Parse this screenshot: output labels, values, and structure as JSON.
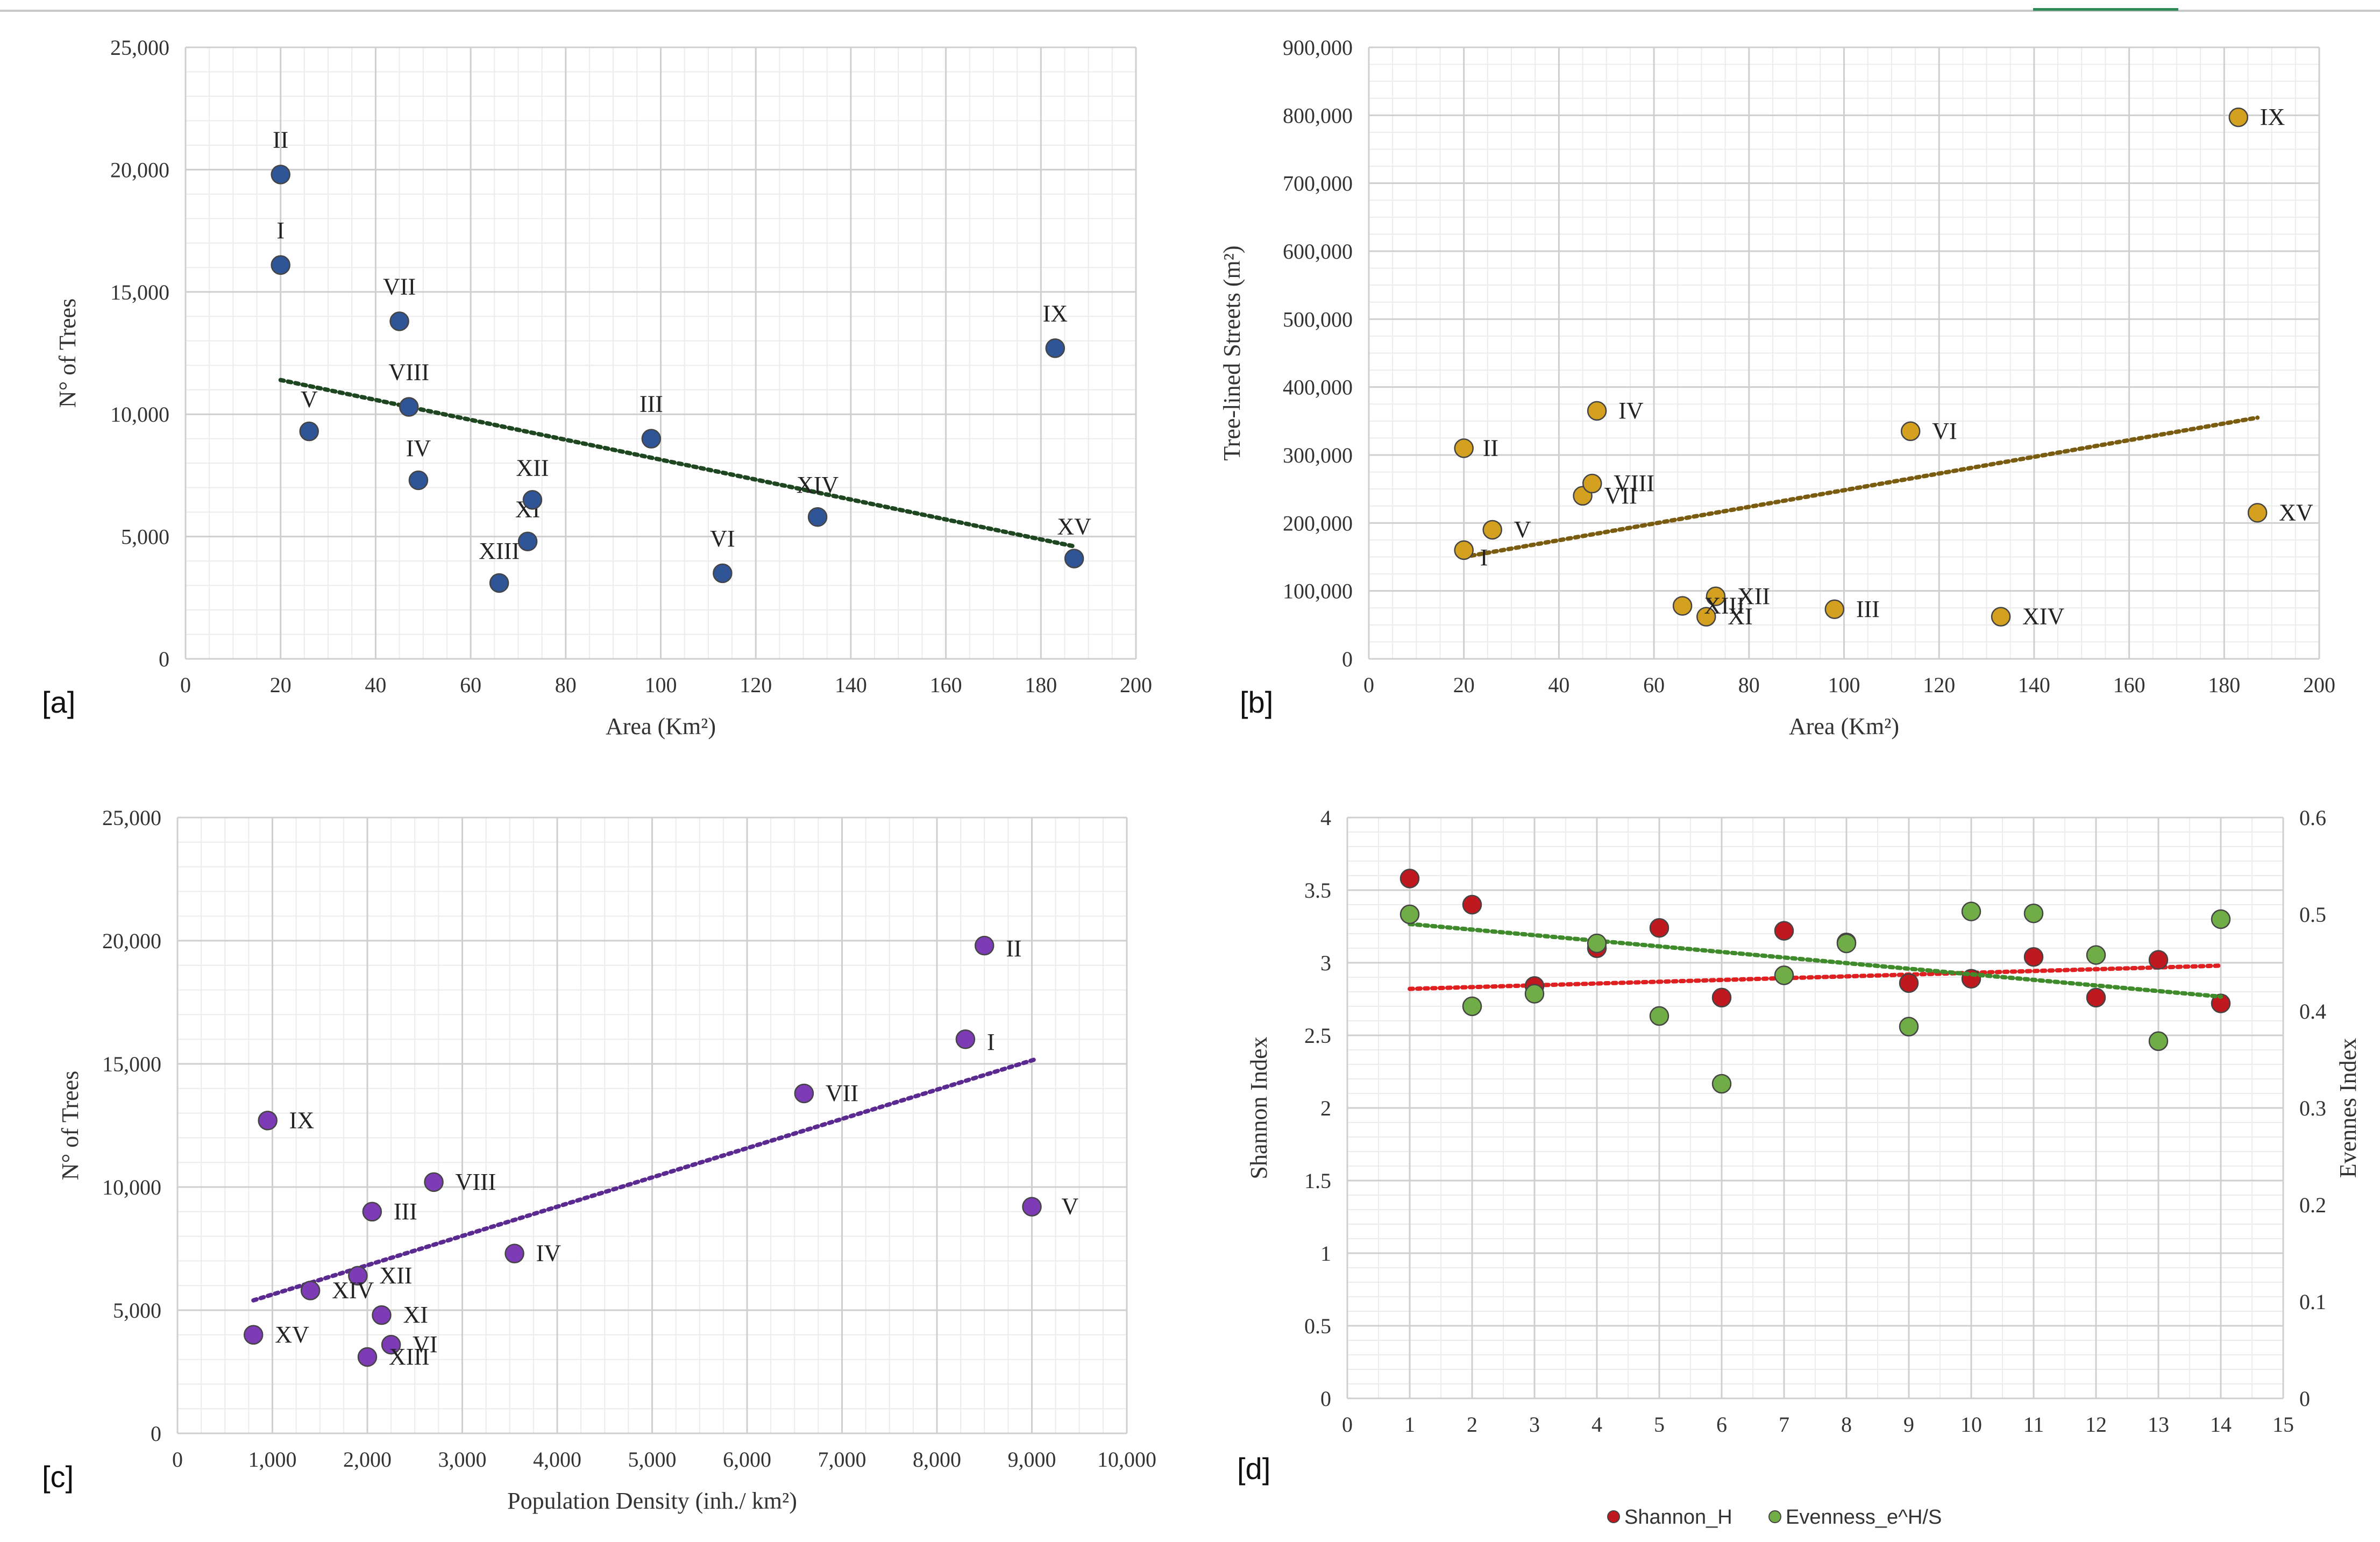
{
  "chart_data": [
    {
      "panel_label": "[a]",
      "type": "scatter",
      "xlabel": "Area (Km²)",
      "ylabel": "N° of Trees",
      "xlim": [
        0,
        200
      ],
      "ylim": [
        0,
        25000
      ],
      "x_ticks": [
        "0",
        "20",
        "40",
        "60",
        "80",
        "100",
        "120",
        "140",
        "160",
        "180",
        "200"
      ],
      "y_ticks": [
        "0",
        "5,000",
        "10,000",
        "15,000",
        "20,000",
        "25,000"
      ],
      "point_color": "#2f5597",
      "trend_color": "#1e4620",
      "trend": {
        "x": [
          20,
          187
        ],
        "y": [
          11400,
          4600
        ]
      },
      "points": [
        {
          "label": "I",
          "x": 20,
          "y": 16100
        },
        {
          "label": "II",
          "x": 20,
          "y": 19800
        },
        {
          "label": "III",
          "x": 98,
          "y": 9000
        },
        {
          "label": "IV",
          "x": 49,
          "y": 7300
        },
        {
          "label": "V",
          "x": 26,
          "y": 9300
        },
        {
          "label": "VI",
          "x": 113,
          "y": 3500
        },
        {
          "label": "VII",
          "x": 45,
          "y": 13800
        },
        {
          "label": "VIII",
          "x": 47,
          "y": 10300
        },
        {
          "label": "IX",
          "x": 183,
          "y": 12700
        },
        {
          "label": "XI",
          "x": 72,
          "y": 4800
        },
        {
          "label": "XII",
          "x": 73,
          "y": 6500
        },
        {
          "label": "XIII",
          "x": 66,
          "y": 3100
        },
        {
          "label": "XIV",
          "x": 133,
          "y": 5800
        },
        {
          "label": "XV",
          "x": 187,
          "y": 4100
        }
      ]
    },
    {
      "panel_label": "[b]",
      "type": "scatter",
      "xlabel": "Area (Km²)",
      "ylabel": "Tree-lined Streets (m²)",
      "xlim": [
        0,
        200
      ],
      "ylim": [
        0,
        900000
      ],
      "x_ticks": [
        "0",
        "20",
        "40",
        "60",
        "80",
        "100",
        "120",
        "140",
        "160",
        "180",
        "200"
      ],
      "y_ticks": [
        "0",
        "100,000",
        "200,000",
        "300,000",
        "400,000",
        "500,000",
        "600,000",
        "700,000",
        "800,000",
        "900,000"
      ],
      "point_color": "#d4a020",
      "trend_color": "#7a5c10",
      "trend": {
        "x": [
          20,
          187
        ],
        "y": [
          150000,
          355000
        ]
      },
      "points": [
        {
          "label": "I",
          "x": 20,
          "y": 160000
        },
        {
          "label": "II",
          "x": 20,
          "y": 310000
        },
        {
          "label": "III",
          "x": 98,
          "y": 73000
        },
        {
          "label": "IV",
          "x": 48,
          "y": 365000
        },
        {
          "label": "V",
          "x": 26,
          "y": 190000
        },
        {
          "label": "VI",
          "x": 114,
          "y": 335000
        },
        {
          "label": "VII",
          "x": 45,
          "y": 240000
        },
        {
          "label": "VIII",
          "x": 47,
          "y": 258000
        },
        {
          "label": "IX",
          "x": 183,
          "y": 797000
        },
        {
          "label": "XI",
          "x": 71,
          "y": 62000
        },
        {
          "label": "XII",
          "x": 73,
          "y": 92000
        },
        {
          "label": "XIII",
          "x": 66,
          "y": 78000
        },
        {
          "label": "XIV",
          "x": 133,
          "y": 62000
        },
        {
          "label": "XV",
          "x": 187,
          "y": 215000
        }
      ]
    },
    {
      "panel_label": "[c]",
      "type": "scatter",
      "xlabel": "Population Density (inh./ km²)",
      "ylabel": "N° of Trees",
      "xlim": [
        0,
        10000
      ],
      "ylim": [
        0,
        25000
      ],
      "x_ticks": [
        "0",
        "1,000",
        "2,000",
        "3,000",
        "4,000",
        "5,000",
        "6,000",
        "7,000",
        "8,000",
        "9,000",
        "10,000"
      ],
      "y_ticks": [
        "0",
        "5,000",
        "10,000",
        "15,000",
        "20,000",
        "25,000"
      ],
      "point_color": "#7d3cb5",
      "trend_color": "#5b2a90",
      "trend": {
        "x": [
          800,
          9050
        ],
        "y": [
          5400,
          15200
        ]
      },
      "points": [
        {
          "label": "I",
          "x": 8300,
          "y": 16000
        },
        {
          "label": "II",
          "x": 8500,
          "y": 19800
        },
        {
          "label": "III",
          "x": 2050,
          "y": 9000
        },
        {
          "label": "IV",
          "x": 3550,
          "y": 7300
        },
        {
          "label": "V",
          "x": 9000,
          "y": 9200
        },
        {
          "label": "VI",
          "x": 2250,
          "y": 3600
        },
        {
          "label": "VII",
          "x": 6600,
          "y": 13800
        },
        {
          "label": "VIII",
          "x": 2700,
          "y": 10200
        },
        {
          "label": "IX",
          "x": 950,
          "y": 12700
        },
        {
          "label": "XI",
          "x": 2150,
          "y": 4800
        },
        {
          "label": "XII",
          "x": 1900,
          "y": 6400
        },
        {
          "label": "XIII",
          "x": 2000,
          "y": 3100
        },
        {
          "label": "XIV",
          "x": 1400,
          "y": 5800
        },
        {
          "label": "XV",
          "x": 800,
          "y": 4000
        }
      ]
    },
    {
      "panel_label": "[d]",
      "type": "scatter",
      "xlabel": "",
      "ylabel": "Shannon Index",
      "y2label": "Evennes Index",
      "xlim": [
        0,
        15
      ],
      "ylim": [
        0,
        4
      ],
      "y2lim": [
        0,
        0.6
      ],
      "x_ticks": [
        "0",
        "1",
        "2",
        "3",
        "4",
        "5",
        "6",
        "7",
        "8",
        "9",
        "10",
        "11",
        "12",
        "13",
        "14",
        "15"
      ],
      "y_ticks": [
        "0",
        "0.5",
        "1",
        "1.5",
        "2",
        "2.5",
        "3",
        "3.5",
        "4"
      ],
      "y2_ticks": [
        "0",
        "0.1",
        "0.2",
        "0.3",
        "0.4",
        "0.5",
        "0.6"
      ],
      "series": [
        {
          "name": "Shannon_H",
          "axis": "left",
          "color": "#c0181f",
          "x": [
            1,
            2,
            3,
            4,
            5,
            6,
            7,
            8,
            9,
            10,
            11,
            12,
            13,
            14
          ],
          "values": [
            3.58,
            3.4,
            2.84,
            3.1,
            3.24,
            2.76,
            3.22,
            3.14,
            2.86,
            2.89,
            3.04,
            2.76,
            3.02,
            2.72
          ],
          "trend": {
            "x": [
              1,
              14
            ],
            "y": [
              2.82,
              2.98
            ],
            "color": "#e02020"
          }
        },
        {
          "name": "Evenness_e^H/S",
          "axis": "right",
          "color": "#70ad47",
          "x": [
            1,
            2,
            3,
            4,
            5,
            6,
            7,
            8,
            9,
            10,
            11,
            12,
            13,
            14
          ],
          "values": [
            0.5,
            0.405,
            0.418,
            0.47,
            0.395,
            0.325,
            0.437,
            0.47,
            0.384,
            0.503,
            0.501,
            0.458,
            0.369,
            0.495
          ],
          "trend": {
            "x": [
              1,
              14
            ],
            "y": [
              0.49,
              0.415
            ],
            "color": "#3f8a2a"
          }
        }
      ]
    }
  ]
}
